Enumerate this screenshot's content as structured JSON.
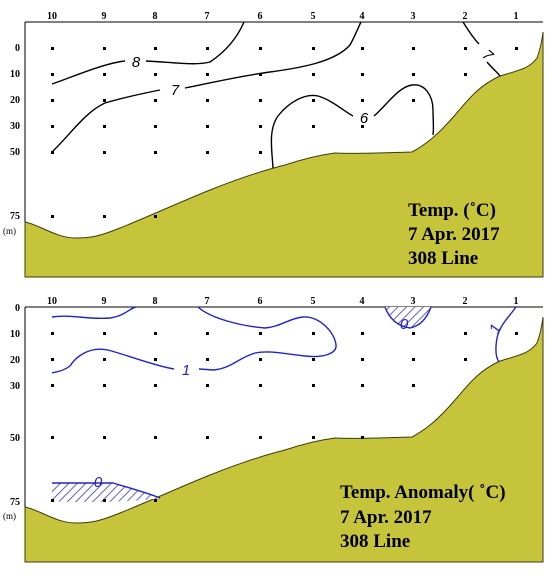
{
  "colors": {
    "seabed": "#c6c43a",
    "seabed_edge": "#3c3c10",
    "temperature_contour": "#000000",
    "anomaly_contour": "#2222cc",
    "hatch": "#3a3ab5"
  },
  "chart_data": [
    {
      "type": "contour",
      "info": [
        "Temp. (˚C)",
        "7 Apr. 2017",
        "308 Line"
      ],
      "stations": [
        "10",
        "9",
        "8",
        "7",
        "6",
        "5",
        "4",
        "3",
        "2",
        "1"
      ],
      "depth_ticks": [
        "0",
        "10",
        "20",
        "30",
        "50",
        "75"
      ],
      "depth_unit": "(m)",
      "contours": [
        {
          "level": "8",
          "label": "8"
        },
        {
          "level": "7",
          "label": "7"
        },
        {
          "level": "6",
          "label": "6"
        },
        {
          "level": "7",
          "label": "7"
        }
      ]
    },
    {
      "type": "contour",
      "info": [
        "Temp. Anomaly( ˚C)",
        "7 Apr. 2017",
        "308 Line"
      ],
      "stations": [
        "10",
        "9",
        "8",
        "7",
        "6",
        "5",
        "4",
        "3",
        "2",
        "1"
      ],
      "depth_ticks": [
        "0",
        "10",
        "20",
        "30",
        "50",
        "75"
      ],
      "depth_unit": "(m)",
      "contours": [
        {
          "level": "1",
          "label": "1"
        },
        {
          "level": "0",
          "label": "0"
        },
        {
          "level": "0",
          "label": "0"
        },
        {
          "level": "1",
          "label": "1"
        }
      ]
    }
  ]
}
